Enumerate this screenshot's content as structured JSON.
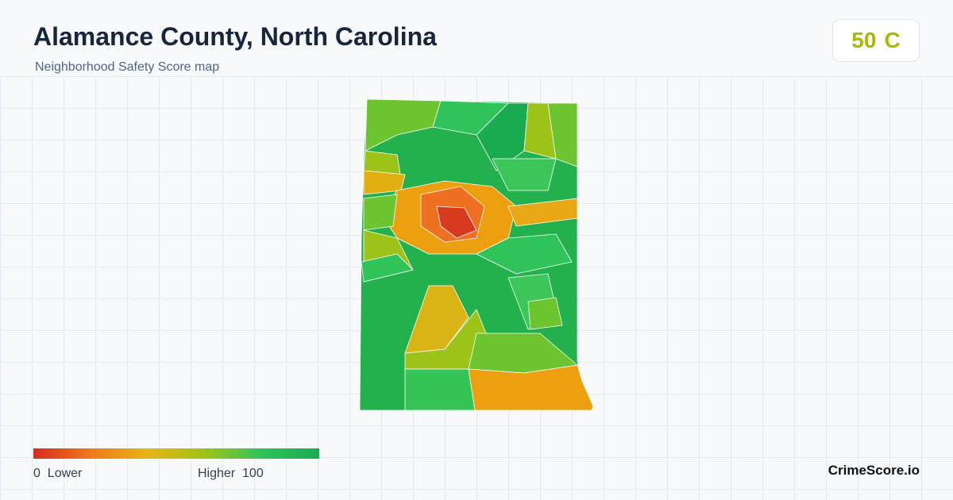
{
  "header": {
    "title": "Alamance County, North Carolina",
    "subtitle": "Neighborhood Safety Score map"
  },
  "score": {
    "value": 50,
    "grade": "C"
  },
  "legend": {
    "min": 0,
    "min_label": "Lower",
    "max_label": "Higher",
    "max": 100
  },
  "brand": "CrimeScore.io"
}
